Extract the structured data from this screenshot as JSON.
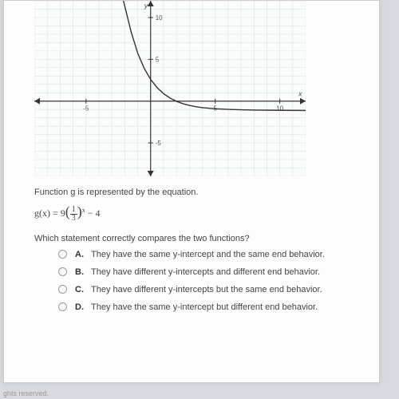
{
  "graph": {
    "background": "#e6e6e6",
    "plot_bg": "#fafcfc",
    "grid_color": "#d9dde0",
    "axis_color": "#333333",
    "curve_color": "#333333",
    "xlim": [
      -9,
      12
    ],
    "ylim": [
      -9,
      12
    ],
    "xticks": [
      {
        "v": -5,
        "l": "-5"
      },
      {
        "v": 5,
        "l": "5"
      },
      {
        "v": 10,
        "l": "10"
      }
    ],
    "yticks": [
      {
        "v": -5,
        "l": "-5"
      },
      {
        "v": 5,
        "l": "5"
      },
      {
        "v": 10,
        "l": "10"
      }
    ],
    "y_axis_label": "y",
    "x_axis_label": "x",
    "axis_label_fontsize": 9,
    "tick_fontsize": 8,
    "curve_points": [
      [
        -2.1,
        12
      ],
      [
        -1.5,
        8.24
      ],
      [
        -1,
        5.75
      ],
      [
        -0.5,
        3.94
      ],
      [
        0,
        2.6
      ],
      [
        0.5,
        1.62
      ],
      [
        1,
        0.9
      ],
      [
        1.5,
        0.37
      ],
      [
        2,
        -0.02
      ],
      [
        2.5,
        -0.31
      ],
      [
        3,
        -0.51
      ],
      [
        3.5,
        -0.67
      ],
      [
        4,
        -0.78
      ],
      [
        5,
        -0.92
      ],
      [
        6,
        -0.99
      ],
      [
        7,
        -1.04
      ],
      [
        8,
        -1.07
      ],
      [
        10,
        -1.1
      ],
      [
        12,
        -1.12
      ]
    ]
  },
  "question": {
    "intro": "Function g is represented by the equation.",
    "eq_prefix": "g(x)  =   9",
    "eq_frac_num": "1",
    "eq_frac_den": "3",
    "eq_exp": "x",
    "eq_suffix": " − 4",
    "prompt": "Which statement correctly compares the two functions?"
  },
  "options": [
    {
      "letter": "A.",
      "text": "They have the same y-intercept and the same end behavior."
    },
    {
      "letter": "B.",
      "text": "They have different y-intercepts and different end behavior."
    },
    {
      "letter": "C.",
      "text": "They have different y-intercepts but the same end behavior."
    },
    {
      "letter": "D.",
      "text": "They have the same y-intercept but different end behavior."
    }
  ],
  "footer": "ghts reserved."
}
